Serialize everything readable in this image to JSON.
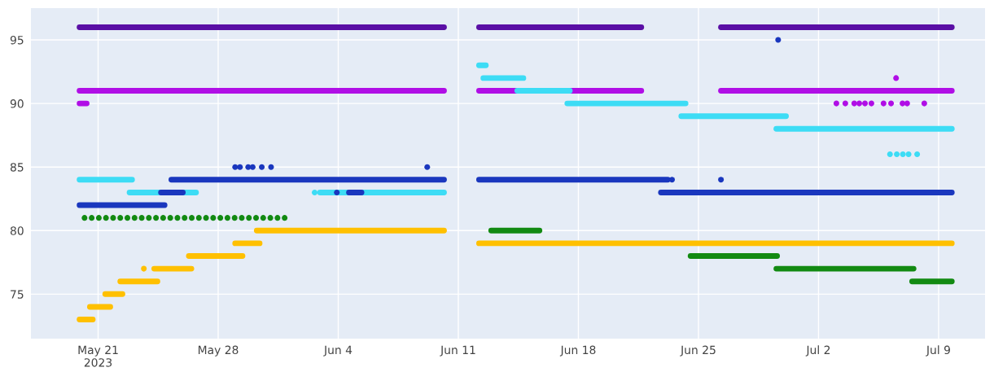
{
  "chart_data": {
    "type": "scatter",
    "xlim": [
      "2023-05-17T02:00",
      "2023-07-11T17:00"
    ],
    "ylim": [
      71.5,
      97.5
    ],
    "xticks": [
      {
        "value": "2023-05-21",
        "label": "May 21\n2023"
      },
      {
        "value": "2023-05-28",
        "label": "May 28"
      },
      {
        "value": "2023-06-04",
        "label": "Jun 4"
      },
      {
        "value": "2023-06-11",
        "label": "Jun 11"
      },
      {
        "value": "2023-06-18",
        "label": "Jun 18"
      },
      {
        "value": "2023-06-25",
        "label": "Jun 25"
      },
      {
        "value": "2023-07-02",
        "label": "Jul 2"
      },
      {
        "value": "2023-07-09",
        "label": "Jul 9"
      }
    ],
    "yticks": [
      75,
      80,
      85,
      90,
      95
    ],
    "grid": true,
    "series": [
      {
        "type": "line",
        "color": "#5a0fa5",
        "x": [
          "2023-05-19T22:00",
          "2023-06-10T04:00"
        ],
        "values": [
          96,
          96
        ]
      },
      {
        "type": "line",
        "color": "#5a0fa5",
        "x": [
          "2023-06-12T05:00",
          "2023-06-21T16:00"
        ],
        "values": [
          96,
          96
        ]
      },
      {
        "type": "line",
        "color": "#5a0fa5",
        "x": [
          "2023-06-26T07:30",
          "2023-07-09T18:30"
        ],
        "values": [
          96,
          96
        ]
      },
      {
        "type": "line",
        "color": "#b00ee6",
        "x": [
          "2023-05-19T22:00",
          "2023-06-10T04:00"
        ],
        "values": [
          91,
          91
        ]
      },
      {
        "type": "line",
        "color": "#b00ee6",
        "x": [
          "2023-06-12T05:00",
          "2023-06-21T16:00"
        ],
        "values": [
          91,
          91
        ]
      },
      {
        "type": "line",
        "color": "#b00ee6",
        "x": [
          "2023-06-26T07:30",
          "2023-07-09T18:30"
        ],
        "values": [
          91,
          91
        ]
      },
      {
        "type": "line",
        "color": "#b00ee6",
        "x": [
          "2023-05-19T22:00",
          "2023-05-20T08:00"
        ],
        "values": [
          90,
          90
        ]
      },
      {
        "color": "#b00ee6",
        "x": [
          "2023-07-03T01:00",
          "2023-07-03T13:30",
          "2023-07-04T02:00",
          "2023-07-04T09:00",
          "2023-07-04T17:00",
          "2023-07-05T02:00",
          "2023-07-05T19:00",
          "2023-07-06T05:30",
          "2023-07-06T21:30",
          "2023-07-07T04:00",
          "2023-07-08T04:00",
          "2023-07-06T12:30"
        ],
        "values": [
          90,
          90,
          90,
          90,
          90,
          90,
          90,
          90,
          90,
          90,
          90,
          92
        ]
      },
      {
        "type": "line",
        "color": "#3ddcf5",
        "x": [
          "2023-05-19T22:00",
          "2023-05-22T23:30"
        ],
        "values": [
          84,
          84
        ]
      },
      {
        "type": "line",
        "color": "#3ddcf5",
        "x": [
          "2023-05-22T20:00",
          "2023-05-26T17:00"
        ],
        "values": [
          83,
          83
        ]
      },
      {
        "type": "line",
        "color": "#3ddcf5",
        "x": [
          "2023-06-02T22:30",
          "2023-06-10T04:00"
        ],
        "values": [
          83,
          83
        ]
      },
      {
        "type": "line",
        "color": "#3ddcf5",
        "x": [
          "2023-06-12T05:00",
          "2023-06-12T14:30"
        ],
        "values": [
          93,
          93
        ]
      },
      {
        "type": "line",
        "color": "#3ddcf5",
        "x": [
          "2023-06-12T11:00",
          "2023-06-14T19:00"
        ],
        "values": [
          92,
          92
        ]
      },
      {
        "type": "line",
        "color": "#3ddcf5",
        "x": [
          "2023-06-14T10:30",
          "2023-06-17T12:00"
        ],
        "values": [
          91,
          91
        ]
      },
      {
        "type": "line",
        "color": "#3ddcf5",
        "x": [
          "2023-06-17T08:30",
          "2023-06-24T06:00"
        ],
        "values": [
          90,
          90
        ]
      },
      {
        "type": "line",
        "color": "#3ddcf5",
        "x": [
          "2023-06-24T00:00",
          "2023-06-30T02:30"
        ],
        "values": [
          89,
          89
        ]
      },
      {
        "type": "line",
        "color": "#3ddcf5",
        "x": [
          "2023-06-29T13:00",
          "2023-07-09T18:30"
        ],
        "values": [
          88,
          88
        ]
      },
      {
        "color": "#3ddcf5",
        "x": [
          "2023-06-02T15:00",
          "2023-07-06T04:00",
          "2023-07-06T13:30",
          "2023-07-06T22:00",
          "2023-07-07T06:00",
          "2023-07-07T18:00"
        ],
        "values": [
          83,
          86,
          86,
          86,
          86,
          86
        ]
      },
      {
        "type": "line",
        "color": "#1a37be",
        "x": [
          "2023-05-19T22:00",
          "2023-05-24T21:00"
        ],
        "values": [
          82,
          82
        ]
      },
      {
        "type": "line",
        "color": "#1a37be",
        "x": [
          "2023-05-24T16:00",
          "2023-05-25T22:30"
        ],
        "values": [
          83,
          83
        ]
      },
      {
        "type": "line",
        "color": "#1a37be",
        "x": [
          "2023-05-25T06:30",
          "2023-06-10T04:00"
        ],
        "values": [
          84,
          84
        ]
      },
      {
        "type": "line",
        "color": "#1a37be",
        "x": [
          "2023-06-04T15:00",
          "2023-06-05T08:30"
        ],
        "values": [
          83,
          83
        ]
      },
      {
        "type": "line",
        "color": "#1a37be",
        "x": [
          "2023-06-12T05:00",
          "2023-06-23T05:00"
        ],
        "values": [
          84,
          84
        ]
      },
      {
        "type": "line",
        "color": "#1a37be",
        "x": [
          "2023-06-22T19:30",
          "2023-07-09T18:30"
        ],
        "values": [
          83,
          83
        ]
      },
      {
        "color": "#1a37be",
        "x": [
          "2023-05-28T23:45",
          "2023-05-29T06:30",
          "2023-05-29T18:00",
          "2023-05-30T00:15",
          "2023-05-30T13:00",
          "2023-05-31T02:00",
          "2023-06-09T04:30",
          "2023-06-03T22:00",
          "2023-06-23T11:00",
          "2023-06-26T07:30",
          "2023-06-29T15:30"
        ],
        "values": [
          85,
          85,
          85,
          85,
          85,
          85,
          85,
          83,
          84,
          84,
          95
        ]
      },
      {
        "color": "#128a12",
        "x": [
          "2023-05-20T05:00",
          "2023-05-20T15:00",
          "2023-05-21T01:00",
          "2023-05-21T11:00",
          "2023-05-21T21:00",
          "2023-05-22T07:00",
          "2023-05-22T17:00",
          "2023-05-23T03:00",
          "2023-05-23T13:00",
          "2023-05-23T23:00",
          "2023-05-24T09:00",
          "2023-05-24T19:00",
          "2023-05-25T05:00",
          "2023-05-25T15:00",
          "2023-05-26T01:00",
          "2023-05-26T11:00",
          "2023-05-26T21:00",
          "2023-05-27T07:00",
          "2023-05-27T17:00",
          "2023-05-28T03:00",
          "2023-05-28T13:00",
          "2023-05-28T23:00",
          "2023-05-29T09:00",
          "2023-05-29T19:00",
          "2023-05-30T05:00",
          "2023-05-30T15:00",
          "2023-05-31T01:00",
          "2023-05-31T11:00",
          "2023-05-31T21:00"
        ],
        "values": [
          81,
          81,
          81,
          81,
          81,
          81,
          81,
          81,
          81,
          81,
          81,
          81,
          81,
          81,
          81,
          81,
          81,
          81,
          81,
          81,
          81,
          81,
          81,
          81,
          81,
          81,
          81,
          81,
          81
        ]
      },
      {
        "type": "line",
        "color": "#128a12",
        "x": [
          "2023-06-12T22:00",
          "2023-06-15T17:30"
        ],
        "values": [
          80,
          80
        ]
      },
      {
        "type": "line",
        "color": "#128a12",
        "x": [
          "2023-06-24T13:00",
          "2023-06-29T14:00"
        ],
        "values": [
          78,
          78
        ]
      },
      {
        "type": "line",
        "color": "#128a12",
        "x": [
          "2023-06-29T13:00",
          "2023-07-07T13:00"
        ],
        "values": [
          77,
          77
        ]
      },
      {
        "type": "line",
        "color": "#128a12",
        "x": [
          "2023-07-07T11:00",
          "2023-07-09T18:30"
        ],
        "values": [
          76,
          76
        ]
      },
      {
        "type": "line",
        "color": "#ffc000",
        "x": [
          "2023-05-19T22:00",
          "2023-05-20T16:30"
        ],
        "values": [
          73,
          73
        ]
      },
      {
        "type": "line",
        "color": "#ffc000",
        "x": [
          "2023-05-20T12:30",
          "2023-05-21T17:00"
        ],
        "values": [
          74,
          74
        ]
      },
      {
        "type": "line",
        "color": "#ffc000",
        "x": [
          "2023-05-21T10:00",
          "2023-05-22T10:00"
        ],
        "values": [
          75,
          75
        ]
      },
      {
        "type": "line",
        "color": "#ffc000",
        "x": [
          "2023-05-22T07:00",
          "2023-05-24T11:00"
        ],
        "values": [
          76,
          76
        ]
      },
      {
        "type": "line",
        "color": "#ffc000",
        "x": [
          "2023-05-24T06:30",
          "2023-05-26T10:30"
        ],
        "values": [
          77,
          77
        ]
      },
      {
        "type": "line",
        "color": "#ffc000",
        "x": [
          "2023-05-26T07:00",
          "2023-05-29T10:00"
        ],
        "values": [
          78,
          78
        ]
      },
      {
        "type": "line",
        "color": "#ffc000",
        "x": [
          "2023-05-28T23:45",
          "2023-05-30T10:00"
        ],
        "values": [
          79,
          79
        ]
      },
      {
        "type": "line",
        "color": "#ffc000",
        "x": [
          "2023-05-30T06:00",
          "2023-06-10T04:00"
        ],
        "values": [
          80,
          80
        ]
      },
      {
        "type": "line",
        "color": "#ffc000",
        "x": [
          "2023-06-12T05:00",
          "2023-07-09T18:30"
        ],
        "values": [
          79,
          79
        ]
      },
      {
        "color": "#ffc000",
        "x": [
          "2023-05-23T16:00"
        ],
        "values": [
          77
        ]
      }
    ]
  }
}
